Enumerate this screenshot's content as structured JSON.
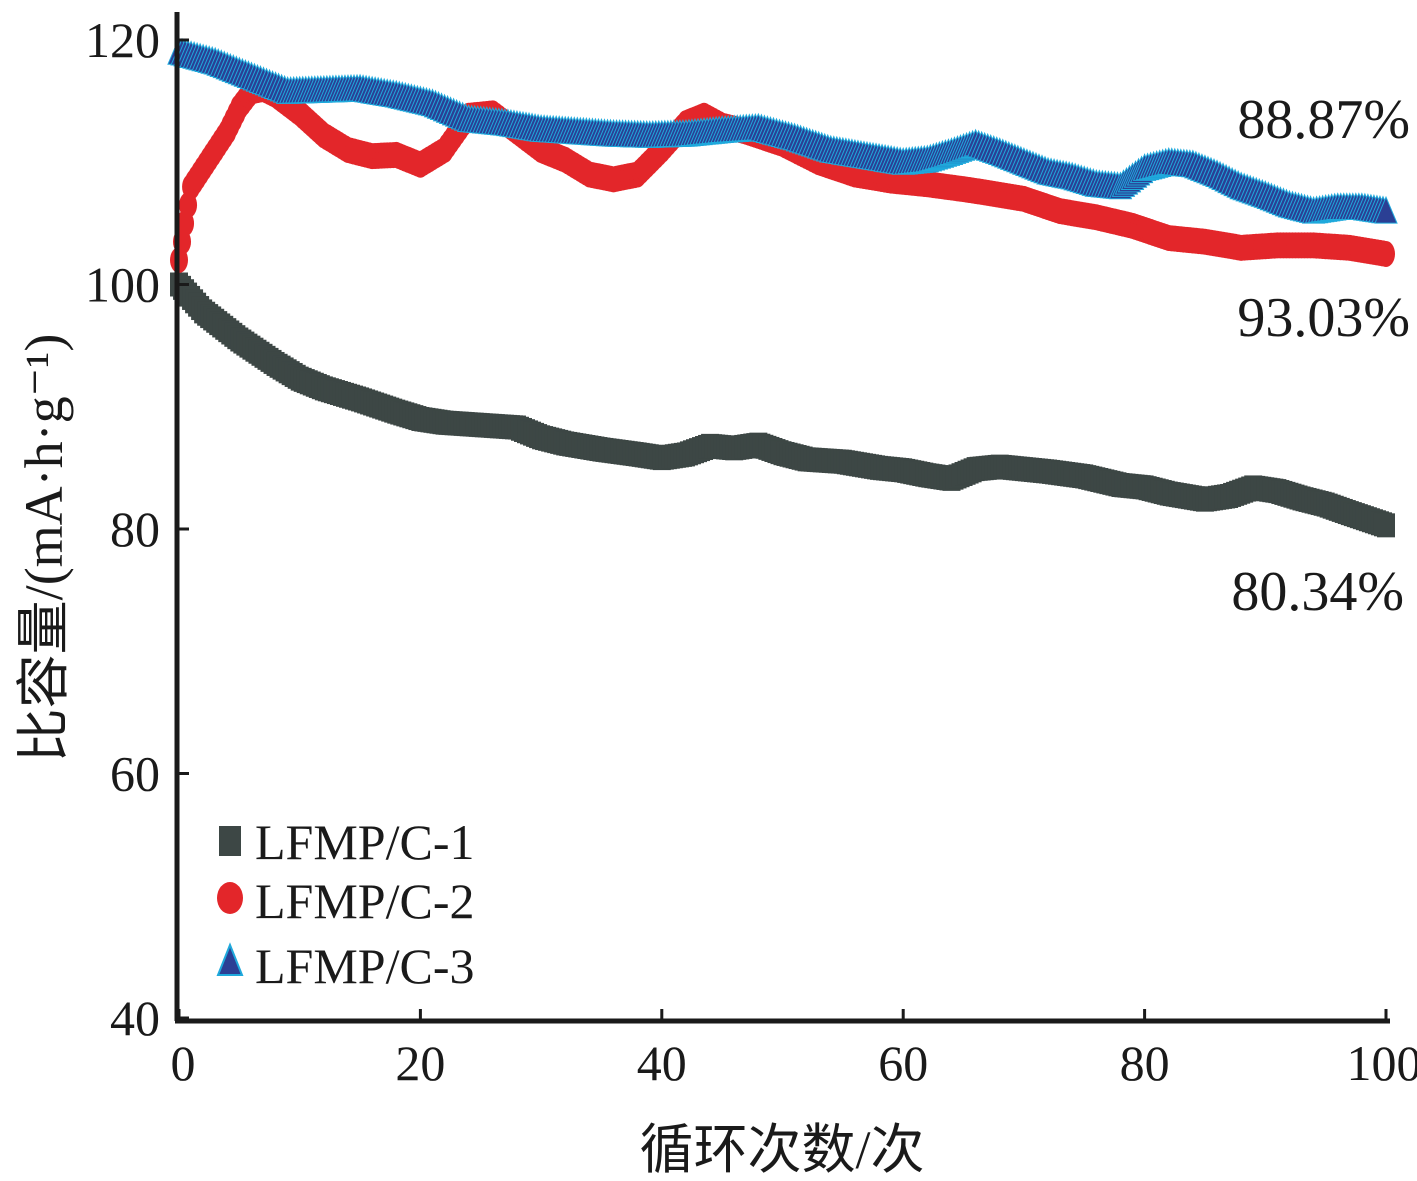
{
  "chart_data": {
    "type": "line",
    "xlabel": "循环次数/次",
    "ylabel": "比容量/(mA·h·g⁻¹)",
    "xlim": [
      0,
      100
    ],
    "ylim": [
      40,
      122
    ],
    "xticks": [
      0,
      20,
      40,
      60,
      80,
      100
    ],
    "yticks": [
      40,
      60,
      80,
      100,
      120
    ],
    "grid": false,
    "legend_position": "bottom-left",
    "series": [
      {
        "name": "LFMP/C-1",
        "marker": "square",
        "color": "#3d4745",
        "x": [
          0,
          2,
          5,
          8,
          10,
          12,
          15,
          18,
          20,
          22,
          25,
          28,
          30,
          32,
          35,
          38,
          40,
          42,
          44,
          46,
          48,
          50,
          52,
          55,
          58,
          60,
          62,
          64,
          66,
          68,
          70,
          72,
          75,
          78,
          80,
          82,
          85,
          87,
          89,
          91,
          93,
          95,
          97,
          100
        ],
        "y": [
          100.0,
          97.8,
          95.5,
          93.5,
          92.3,
          91.5,
          90.6,
          89.6,
          89.0,
          88.7,
          88.5,
          88.3,
          87.5,
          87.0,
          86.5,
          86.1,
          85.8,
          86.1,
          86.8,
          86.6,
          86.9,
          86.2,
          85.7,
          85.5,
          85.0,
          84.8,
          84.4,
          84.1,
          84.9,
          85.1,
          84.9,
          84.7,
          84.3,
          83.6,
          83.4,
          82.9,
          82.4,
          82.7,
          83.4,
          83.1,
          82.5,
          82.0,
          81.3,
          80.3
        ]
      },
      {
        "name": "LFMP/C-2",
        "marker": "circle",
        "color": "#e3262a",
        "x": [
          0,
          1,
          2,
          3,
          4,
          5,
          6,
          7,
          8,
          10,
          12,
          14,
          16,
          18,
          20,
          22,
          24,
          26,
          28,
          30,
          32,
          34,
          36,
          38,
          40,
          42,
          43.5,
          45,
          47,
          50,
          53,
          56,
          59,
          62,
          65,
          67,
          70,
          73,
          76,
          79,
          82,
          85,
          88,
          91,
          94,
          97,
          100
        ],
        "y": [
          102.0,
          108.0,
          109.5,
          111.0,
          112.5,
          114.5,
          115.8,
          116.0,
          115.5,
          114.0,
          112.2,
          111.0,
          110.5,
          110.6,
          109.8,
          111.0,
          113.8,
          114.0,
          112.5,
          111.0,
          110.2,
          109.0,
          108.6,
          109.0,
          111.0,
          113.2,
          113.8,
          113.0,
          112.5,
          111.5,
          110.0,
          109.0,
          108.5,
          108.2,
          107.8,
          107.5,
          107.0,
          106.0,
          105.5,
          104.8,
          103.8,
          103.5,
          103.0,
          103.2,
          103.2,
          103.0,
          102.5
        ]
      },
      {
        "name": "LFMP/C-3",
        "marker": "triangle",
        "color": "#2b3f94",
        "x": [
          0,
          3,
          6,
          9,
          12,
          15,
          18,
          21,
          24,
          27,
          30,
          33,
          36,
          39,
          42,
          45,
          48,
          51,
          54,
          57,
          60,
          62,
          64,
          66,
          68,
          70,
          72,
          74,
          76,
          78,
          80,
          82,
          84,
          86,
          88,
          90,
          92,
          94,
          96,
          98,
          100
        ],
        "y": [
          119.0,
          118.2,
          117.0,
          115.8,
          115.9,
          116.0,
          115.5,
          114.8,
          113.5,
          113.2,
          112.7,
          112.5,
          112.3,
          112.2,
          112.3,
          112.6,
          112.8,
          112.0,
          111.0,
          110.5,
          110.0,
          110.2,
          110.8,
          111.5,
          110.8,
          110.0,
          109.2,
          108.8,
          108.2,
          108.0,
          109.5,
          110.0,
          109.8,
          109.0,
          108.0,
          107.3,
          106.5,
          106.0,
          106.3,
          106.3,
          106.0
        ]
      }
    ],
    "annotations": [
      {
        "text": "88.87%",
        "series": "LFMP/C-3"
      },
      {
        "text": "93.03%",
        "series": "LFMP/C-2"
      },
      {
        "text": "80.34%",
        "series": "LFMP/C-1"
      }
    ]
  }
}
